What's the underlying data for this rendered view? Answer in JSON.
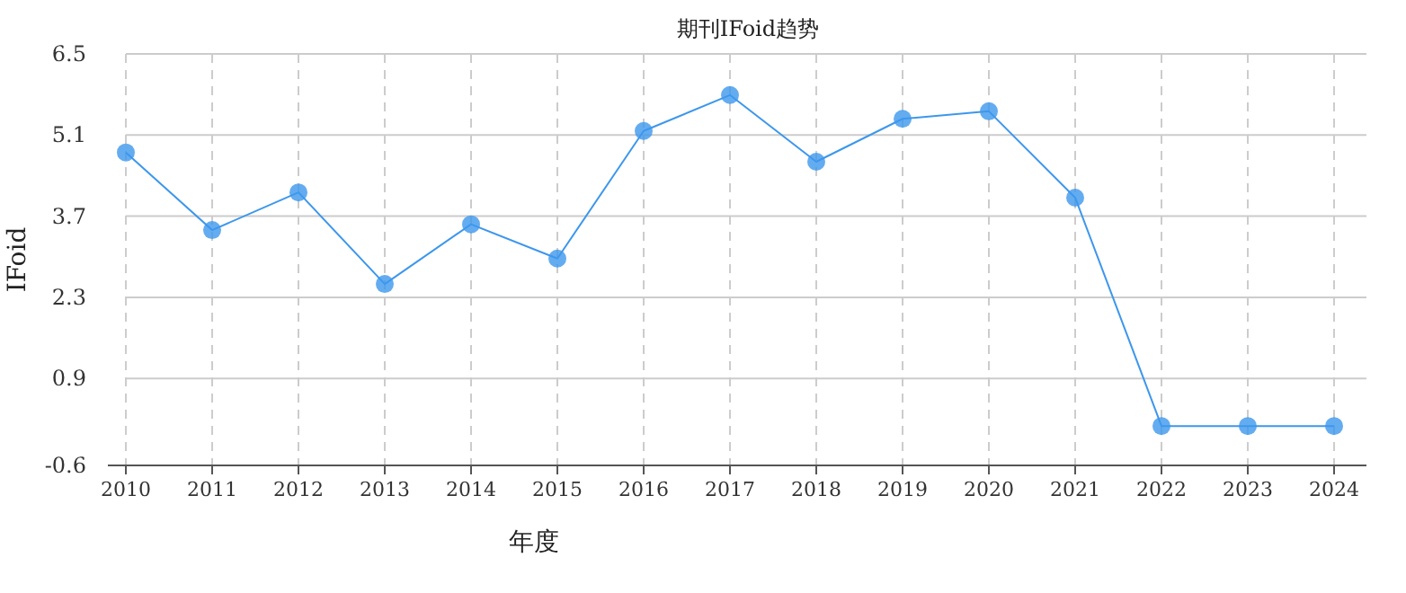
{
  "chart_data": {
    "type": "line",
    "title": "期刊IFoid趋势",
    "xlabel": "年度",
    "ylabel": "IFoid",
    "categories": [
      "2010",
      "2011",
      "2012",
      "2013",
      "2014",
      "2015",
      "2016",
      "2017",
      "2018",
      "2019",
      "2020",
      "2021",
      "2022",
      "2023",
      "2024"
    ],
    "values": [
      4.8,
      3.46,
      4.11,
      2.53,
      3.56,
      2.97,
      5.17,
      5.79,
      4.64,
      5.38,
      5.51,
      4.02,
      0.08,
      0.08,
      0.08
    ],
    "color": "#3d97ec",
    "ylim": [
      -0.6,
      6.5
    ],
    "yticks": [
      6.5,
      5.1,
      3.7,
      2.3,
      0.9,
      -0.6
    ],
    "grid": true,
    "marker": "circle"
  }
}
